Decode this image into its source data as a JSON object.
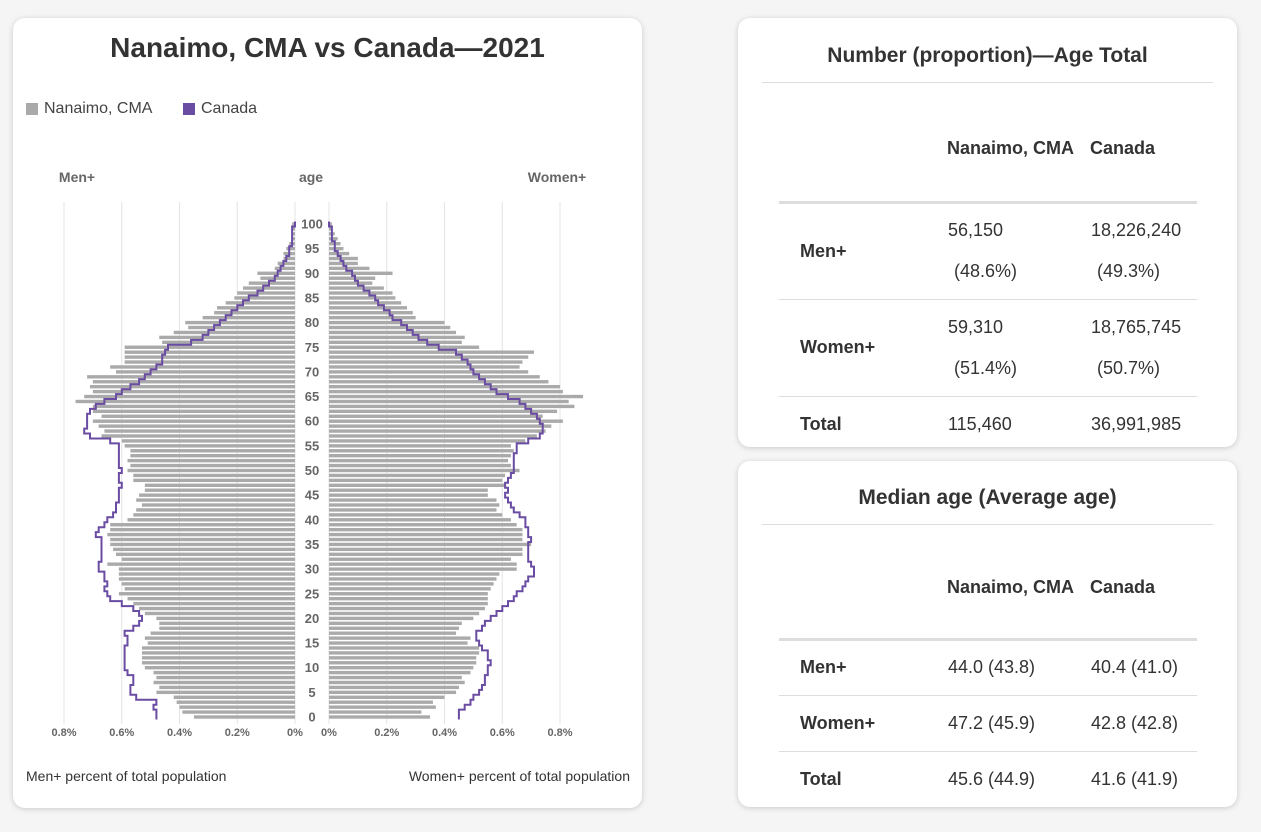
{
  "chart_data": {
    "type": "population-pyramid",
    "title": "Nanaimo, CMA vs Canada—2021",
    "legend": [
      {
        "name": "Nanaimo, CMA",
        "color": "#aaaaaa",
        "mark": "bars"
      },
      {
        "name": "Canada",
        "color": "#6a4ca3",
        "mark": "step-line"
      }
    ],
    "left_heading": "Men+",
    "center_heading": "age",
    "right_heading": "Women+",
    "xlabel_left": "Men+ percent of total population",
    "xlabel_right": "Women+ percent of total population",
    "x_ticks": [
      "0.8%",
      "0.6%",
      "0.4%",
      "0.2%",
      "0%"
    ],
    "x_ticks_right": [
      "0%",
      "0.2%",
      "0.4%",
      "0.6%",
      "0.8%"
    ],
    "xlim": [
      0,
      0.8
    ],
    "age_ticks": [
      0,
      5,
      10,
      15,
      20,
      25,
      30,
      35,
      40,
      45,
      50,
      55,
      60,
      65,
      70,
      75,
      80,
      85,
      90,
      95,
      100
    ],
    "ages": [
      0,
      1,
      2,
      3,
      4,
      5,
      6,
      7,
      8,
      9,
      10,
      11,
      12,
      13,
      14,
      15,
      16,
      17,
      18,
      19,
      20,
      21,
      22,
      23,
      24,
      25,
      26,
      27,
      28,
      29,
      30,
      31,
      32,
      33,
      34,
      35,
      36,
      37,
      38,
      39,
      40,
      41,
      42,
      43,
      44,
      45,
      46,
      47,
      48,
      49,
      50,
      51,
      52,
      53,
      54,
      55,
      56,
      57,
      58,
      59,
      60,
      61,
      62,
      63,
      64,
      65,
      66,
      67,
      68,
      69,
      70,
      71,
      72,
      73,
      74,
      75,
      76,
      77,
      78,
      79,
      80,
      81,
      82,
      83,
      84,
      85,
      86,
      87,
      88,
      89,
      90,
      91,
      92,
      93,
      94,
      95,
      96,
      97,
      98,
      99,
      100
    ],
    "series": [
      {
        "name": "Nanaimo, CMA men",
        "values": [
          0.35,
          0.39,
          0.4,
          0.41,
          0.42,
          0.48,
          0.47,
          0.49,
          0.48,
          0.49,
          0.52,
          0.53,
          0.53,
          0.53,
          0.53,
          0.51,
          0.52,
          0.5,
          0.47,
          0.47,
          0.48,
          0.52,
          0.54,
          0.56,
          0.58,
          0.61,
          0.59,
          0.6,
          0.61,
          0.61,
          0.61,
          0.65,
          0.6,
          0.62,
          0.63,
          0.64,
          0.64,
          0.65,
          0.64,
          0.64,
          0.58,
          0.56,
          0.55,
          0.53,
          0.55,
          0.54,
          0.52,
          0.52,
          0.56,
          0.56,
          0.58,
          0.57,
          0.58,
          0.57,
          0.57,
          0.59,
          0.6,
          0.67,
          0.66,
          0.68,
          0.7,
          0.67,
          0.7,
          0.7,
          0.76,
          0.73,
          0.7,
          0.71,
          0.7,
          0.72,
          0.62,
          0.64,
          0.59,
          0.59,
          0.59,
          0.59,
          0.46,
          0.47,
          0.42,
          0.37,
          0.38,
          0.32,
          0.28,
          0.27,
          0.24,
          0.21,
          0.2,
          0.18,
          0.16,
          0.12,
          0.13,
          0.07,
          0.06,
          0.04,
          0.04,
          0.03,
          0.02,
          0.01,
          0.01,
          0.01,
          0.01
        ]
      },
      {
        "name": "Nanaimo, CMA women",
        "values": [
          0.35,
          0.32,
          0.37,
          0.36,
          0.4,
          0.44,
          0.45,
          0.47,
          0.46,
          0.49,
          0.5,
          0.51,
          0.51,
          0.52,
          0.52,
          0.48,
          0.49,
          0.44,
          0.45,
          0.46,
          0.5,
          0.52,
          0.54,
          0.55,
          0.55,
          0.55,
          0.56,
          0.57,
          0.58,
          0.59,
          0.65,
          0.65,
          0.63,
          0.67,
          0.67,
          0.7,
          0.67,
          0.67,
          0.67,
          0.65,
          0.63,
          0.6,
          0.58,
          0.59,
          0.58,
          0.55,
          0.55,
          0.61,
          0.6,
          0.61,
          0.66,
          0.63,
          0.62,
          0.63,
          0.64,
          0.63,
          0.68,
          0.72,
          0.75,
          0.77,
          0.81,
          0.74,
          0.79,
          0.85,
          0.83,
          0.88,
          0.81,
          0.8,
          0.76,
          0.73,
          0.69,
          0.66,
          0.67,
          0.69,
          0.71,
          0.52,
          0.46,
          0.47,
          0.44,
          0.42,
          0.4,
          0.3,
          0.29,
          0.27,
          0.25,
          0.23,
          0.22,
          0.19,
          0.15,
          0.16,
          0.22,
          0.14,
          0.1,
          0.1,
          0.07,
          0.05,
          0.04,
          0.03,
          0.02,
          0.01,
          0.01
        ]
      },
      {
        "name": "Canada men",
        "values": [
          0.48,
          0.48,
          0.49,
          0.48,
          0.55,
          0.57,
          0.57,
          0.56,
          0.56,
          0.58,
          0.59,
          0.59,
          0.59,
          0.59,
          0.59,
          0.58,
          0.58,
          0.59,
          0.56,
          0.54,
          0.53,
          0.54,
          0.56,
          0.6,
          0.64,
          0.65,
          0.66,
          0.65,
          0.66,
          0.66,
          0.68,
          0.68,
          0.67,
          0.67,
          0.67,
          0.67,
          0.67,
          0.69,
          0.68,
          0.66,
          0.65,
          0.63,
          0.62,
          0.62,
          0.61,
          0.61,
          0.61,
          0.6,
          0.61,
          0.61,
          0.6,
          0.61,
          0.61,
          0.61,
          0.61,
          0.61,
          0.64,
          0.71,
          0.73,
          0.72,
          0.72,
          0.72,
          0.71,
          0.69,
          0.66,
          0.62,
          0.6,
          0.57,
          0.54,
          0.52,
          0.5,
          0.48,
          0.46,
          0.46,
          0.45,
          0.44,
          0.36,
          0.32,
          0.3,
          0.28,
          0.26,
          0.24,
          0.22,
          0.2,
          0.18,
          0.16,
          0.13,
          0.11,
          0.09,
          0.07,
          0.06,
          0.05,
          0.04,
          0.03,
          0.02,
          0.02,
          0.01,
          0.01,
          0.01,
          0.01,
          0.0
        ]
      },
      {
        "name": "Canada women",
        "values": [
          0.45,
          0.45,
          0.47,
          0.49,
          0.5,
          0.52,
          0.53,
          0.54,
          0.54,
          0.55,
          0.55,
          0.56,
          0.55,
          0.55,
          0.53,
          0.52,
          0.51,
          0.51,
          0.53,
          0.54,
          0.56,
          0.58,
          0.6,
          0.62,
          0.64,
          0.65,
          0.67,
          0.68,
          0.69,
          0.71,
          0.71,
          0.7,
          0.69,
          0.69,
          0.69,
          0.69,
          0.7,
          0.69,
          0.69,
          0.68,
          0.68,
          0.66,
          0.64,
          0.63,
          0.62,
          0.61,
          0.62,
          0.61,
          0.62,
          0.63,
          0.64,
          0.64,
          0.64,
          0.64,
          0.65,
          0.65,
          0.69,
          0.73,
          0.74,
          0.74,
          0.73,
          0.72,
          0.7,
          0.68,
          0.66,
          0.62,
          0.58,
          0.56,
          0.54,
          0.52,
          0.5,
          0.49,
          0.48,
          0.46,
          0.44,
          0.38,
          0.34,
          0.31,
          0.29,
          0.27,
          0.25,
          0.22,
          0.21,
          0.19,
          0.17,
          0.16,
          0.14,
          0.12,
          0.1,
          0.09,
          0.08,
          0.06,
          0.05,
          0.04,
          0.03,
          0.02,
          0.02,
          0.01,
          0.01,
          0.01,
          0.0
        ]
      }
    ]
  },
  "population_table": {
    "title": "Number (proportion)—Age Total",
    "col_nanaimo": "Nanaimo, CMA",
    "col_canada": "Canada",
    "rows": [
      {
        "label": "Men+",
        "nanaimo_num": "56,150",
        "nanaimo_pct": "(48.6%)",
        "canada_num": "18,226,240",
        "canada_pct": "(49.3%)"
      },
      {
        "label": "Women+",
        "nanaimo_num": "59,310",
        "nanaimo_pct": "(51.4%)",
        "canada_num": "18,765,745",
        "canada_pct": "(50.7%)"
      },
      {
        "label": "Total",
        "nanaimo_num": "115,460",
        "canada_num": "36,991,985"
      }
    ]
  },
  "age_table": {
    "title": "Median age (Average age)",
    "col_nanaimo": "Nanaimo, CMA",
    "col_canada": "Canada",
    "rows": [
      {
        "label": "Men+",
        "nanaimo": "44.0 (43.8)",
        "canada": "40.4 (41.0)"
      },
      {
        "label": "Women+",
        "nanaimo": "47.2 (45.9)",
        "canada": "42.8 (42.8)"
      },
      {
        "label": "Total",
        "nanaimo": "45.6 (44.9)",
        "canada": "41.6 (41.9)"
      }
    ]
  }
}
